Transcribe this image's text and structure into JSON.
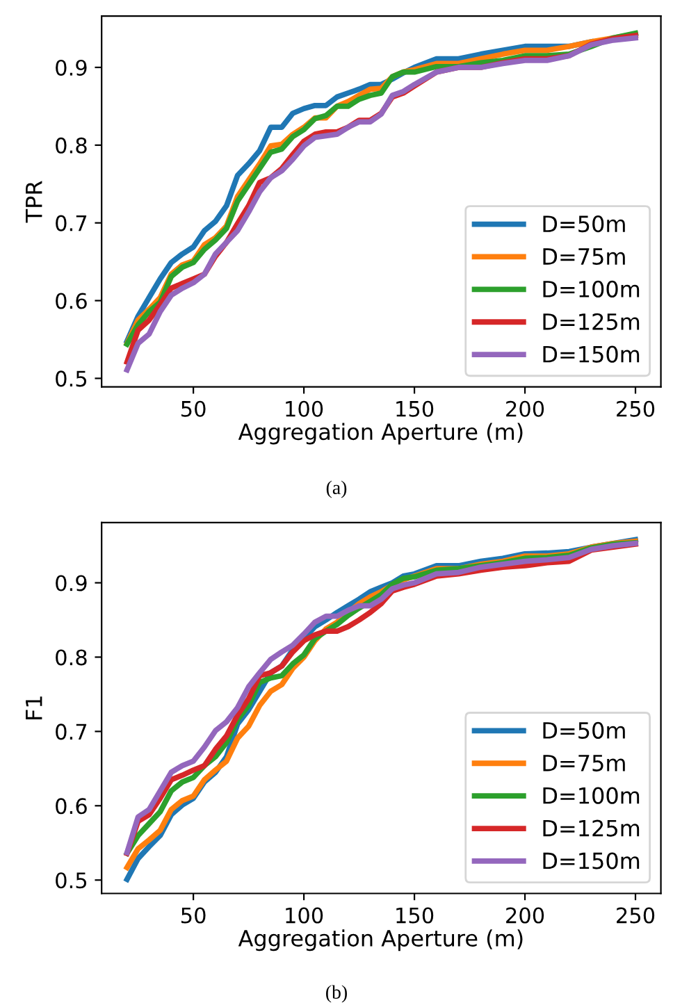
{
  "chart_data": [
    {
      "type": "line",
      "xlabel": "Aggregation Aperture (m)",
      "ylabel": "TPR",
      "annotations": [
        "(a)"
      ],
      "legend": "bottom right",
      "grid": false,
      "xlim": [
        8.5,
        261.5
      ],
      "ylim": [
        0.489,
        0.966
      ],
      "xticks": [
        50,
        100,
        150,
        200,
        250
      ],
      "yticks": [
        0.5,
        0.6,
        0.7,
        0.8,
        0.9
      ],
      "x": [
        20,
        25,
        30,
        35,
        40,
        45,
        50,
        55,
        60,
        65,
        70,
        75,
        80,
        85,
        90,
        95,
        100,
        105,
        110,
        115,
        120,
        125,
        130,
        135,
        140,
        145,
        150,
        160,
        170,
        180,
        190,
        200,
        210,
        220,
        230,
        240,
        250
      ],
      "series": [
        {
          "name": "D=50m",
          "color": "#1f77b4",
          "values": [
            0.548,
            0.58,
            0.604,
            0.628,
            0.649,
            0.66,
            0.669,
            0.69,
            0.702,
            0.722,
            0.761,
            0.776,
            0.793,
            0.823,
            0.823,
            0.841,
            0.847,
            0.851,
            0.851,
            0.862,
            0.867,
            0.872,
            0.878,
            0.878,
            0.885,
            0.893,
            0.9,
            0.911,
            0.911,
            0.917,
            0.922,
            0.927,
            0.927,
            0.927,
            0.933,
            null,
            null
          ]
        },
        {
          "name": "D=75m",
          "color": "#ff7f0e",
          "values": [
            0.545,
            0.575,
            0.589,
            0.604,
            0.634,
            0.646,
            0.651,
            0.672,
            0.681,
            0.696,
            0.734,
            0.755,
            0.776,
            0.799,
            0.801,
            0.814,
            0.823,
            0.835,
            0.835,
            0.85,
            0.856,
            0.864,
            0.872,
            0.873,
            0.888,
            0.894,
            0.897,
            0.905,
            0.905,
            0.911,
            0.917,
            0.922,
            0.922,
            0.927,
            0.933,
            0.938,
            0.943
          ]
        },
        {
          "name": "D=100m",
          "color": "#2ca02c",
          "values": [
            0.544,
            0.569,
            0.586,
            0.598,
            0.631,
            0.643,
            0.649,
            0.666,
            0.678,
            0.693,
            0.728,
            0.749,
            0.77,
            0.791,
            0.795,
            0.811,
            0.82,
            0.834,
            0.838,
            0.85,
            0.85,
            0.859,
            0.864,
            0.867,
            0.888,
            0.894,
            0.894,
            0.901,
            0.901,
            0.906,
            0.909,
            0.915,
            0.915,
            0.917,
            0.927,
            0.938,
            0.944
          ]
        },
        {
          "name": "D=125m",
          "color": "#d62728",
          "values": [
            0.521,
            0.562,
            0.575,
            0.595,
            0.616,
            0.622,
            0.628,
            0.634,
            0.657,
            0.675,
            0.699,
            0.722,
            0.752,
            0.758,
            0.77,
            0.788,
            0.805,
            0.814,
            0.817,
            0.817,
            0.823,
            0.832,
            0.832,
            0.841,
            0.862,
            0.867,
            0.876,
            0.894,
            0.9,
            0.9,
            0.906,
            0.911,
            0.911,
            0.915,
            0.93,
            0.937,
            0.941
          ]
        },
        {
          "name": "D=150m",
          "color": "#9467bd",
          "values": [
            0.511,
            0.545,
            0.557,
            0.586,
            0.607,
            0.616,
            0.623,
            0.634,
            0.66,
            0.675,
            0.69,
            0.714,
            0.74,
            0.758,
            0.767,
            0.782,
            0.799,
            0.81,
            0.812,
            0.814,
            0.823,
            0.83,
            0.83,
            0.84,
            0.864,
            0.869,
            0.878,
            0.894,
            0.9,
            0.9,
            0.905,
            0.909,
            0.909,
            0.915,
            0.929,
            0.935,
            0.938
          ]
        }
      ]
    },
    {
      "type": "line",
      "xlabel": "Aggregation Aperture (m)",
      "ylabel": "F1",
      "annotations": [
        "(b)"
      ],
      "legend": "bottom right",
      "grid": false,
      "xlim": [
        8.5,
        261.5
      ],
      "ylim": [
        0.482,
        0.981
      ],
      "xticks": [
        50,
        100,
        150,
        200,
        250
      ],
      "yticks": [
        0.5,
        0.6,
        0.7,
        0.8,
        0.9
      ],
      "x": [
        20,
        25,
        30,
        35,
        40,
        45,
        50,
        55,
        60,
        65,
        70,
        75,
        80,
        85,
        90,
        95,
        100,
        105,
        110,
        115,
        120,
        125,
        130,
        135,
        140,
        145,
        150,
        160,
        170,
        180,
        190,
        200,
        210,
        220,
        230,
        240,
        250
      ],
      "series": [
        {
          "name": "D=50m",
          "color": "#1f77b4",
          "values": [
            0.501,
            0.529,
            0.545,
            0.56,
            0.588,
            0.601,
            0.61,
            0.632,
            0.645,
            0.666,
            0.71,
            0.729,
            0.754,
            0.779,
            0.788,
            0.81,
            0.825,
            0.841,
            0.85,
            0.86,
            0.869,
            0.878,
            0.888,
            0.894,
            0.9,
            0.909,
            0.912,
            0.923,
            0.923,
            0.929,
            0.933,
            0.939,
            0.94,
            0.942,
            0.948,
            0.953,
            0.958
          ]
        },
        {
          "name": "D=75m",
          "color": "#ff7f0e",
          "values": [
            0.517,
            0.542,
            0.554,
            0.567,
            0.595,
            0.607,
            0.613,
            0.635,
            0.648,
            0.66,
            0.691,
            0.707,
            0.735,
            0.754,
            0.763,
            0.785,
            0.8,
            0.822,
            0.838,
            0.847,
            0.86,
            0.872,
            0.881,
            0.888,
            0.897,
            0.904,
            0.909,
            0.919,
            0.919,
            0.925,
            0.929,
            0.936,
            0.936,
            0.939,
            0.948,
            0.953,
            0.956
          ]
        },
        {
          "name": "D=100m",
          "color": "#2ca02c",
          "values": [
            0.536,
            0.56,
            0.576,
            0.592,
            0.62,
            0.632,
            0.638,
            0.654,
            0.666,
            0.685,
            0.716,
            0.735,
            0.766,
            0.772,
            0.775,
            0.791,
            0.803,
            0.825,
            0.835,
            0.844,
            0.856,
            0.866,
            0.875,
            0.884,
            0.898,
            0.906,
            0.908,
            0.917,
            0.919,
            0.923,
            0.927,
            0.933,
            0.934,
            0.937,
            0.947,
            0.952,
            0.954
          ]
        },
        {
          "name": "D=125m",
          "color": "#d62728",
          "values": [
            0.536,
            0.579,
            0.588,
            0.61,
            0.635,
            0.641,
            0.648,
            0.654,
            0.676,
            0.694,
            0.722,
            0.744,
            0.775,
            0.779,
            0.788,
            0.807,
            0.822,
            0.83,
            0.835,
            0.835,
            0.841,
            0.85,
            0.86,
            0.872,
            0.889,
            0.894,
            0.898,
            0.909,
            0.912,
            0.917,
            0.921,
            0.923,
            0.927,
            0.929,
            0.944,
            0.948,
            0.952
          ]
        },
        {
          "name": "D=150m",
          "color": "#9467bd",
          "values": [
            0.537,
            0.585,
            0.595,
            0.62,
            0.645,
            0.654,
            0.66,
            0.679,
            0.701,
            0.713,
            0.732,
            0.76,
            0.779,
            0.797,
            0.807,
            0.816,
            0.831,
            0.847,
            0.855,
            0.855,
            0.863,
            0.869,
            0.869,
            0.878,
            0.892,
            0.897,
            0.9,
            0.912,
            0.914,
            0.921,
            0.925,
            0.929,
            0.931,
            0.934,
            0.945,
            0.95,
            0.953
          ]
        }
      ]
    }
  ]
}
